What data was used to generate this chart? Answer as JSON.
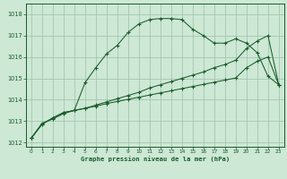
{
  "bg_color": "#cde8d5",
  "grid_color": "#9dbfab",
  "line_color": "#1a5c2a",
  "xlabel": "Graphe pression niveau de la mer (hPa)",
  "ylim": [
    1011.8,
    1018.5
  ],
  "xlim": [
    -0.5,
    23.5
  ],
  "yticks": [
    1012,
    1013,
    1014,
    1015,
    1016,
    1017,
    1018
  ],
  "xticks": [
    0,
    1,
    2,
    3,
    4,
    5,
    6,
    7,
    8,
    9,
    10,
    11,
    12,
    13,
    14,
    15,
    16,
    17,
    18,
    19,
    20,
    21,
    22,
    23
  ],
  "line_upper_x": [
    0,
    1,
    2,
    3,
    4,
    5,
    6,
    7,
    8,
    9,
    10,
    11,
    12,
    13,
    14,
    15,
    16,
    17,
    18,
    19,
    20,
    21,
    22,
    23
  ],
  "line_upper_y": [
    1012.2,
    1012.9,
    1013.1,
    1013.35,
    1013.5,
    1014.8,
    1015.5,
    1016.15,
    1016.55,
    1017.15,
    1017.55,
    1017.75,
    1017.8,
    1017.8,
    1017.75,
    1017.3,
    1017.0,
    1016.65,
    1016.65,
    1016.85,
    1016.65,
    1016.2,
    1015.1,
    1014.7
  ],
  "line_mid_x": [
    0,
    1,
    2,
    3,
    4,
    5,
    6,
    7,
    8,
    9,
    10,
    11,
    12,
    13,
    14,
    15,
    16,
    17,
    18,
    19,
    20,
    21,
    22,
    23
  ],
  "line_mid_y": [
    1012.2,
    1012.85,
    1013.15,
    1013.4,
    1013.5,
    1013.6,
    1013.75,
    1013.9,
    1014.05,
    1014.2,
    1014.35,
    1014.55,
    1014.7,
    1014.85,
    1015.0,
    1015.15,
    1015.3,
    1015.5,
    1015.65,
    1015.85,
    1016.4,
    1016.75,
    1017.0,
    1014.7
  ],
  "line_low_x": [
    0,
    1,
    2,
    3,
    4,
    5,
    6,
    7,
    8,
    9,
    10,
    11,
    12,
    13,
    14,
    15,
    16,
    17,
    18,
    19,
    20,
    21,
    22,
    23
  ],
  "line_low_y": [
    1012.2,
    1012.85,
    1013.15,
    1013.4,
    1013.5,
    1013.6,
    1013.7,
    1013.82,
    1013.92,
    1014.02,
    1014.12,
    1014.22,
    1014.32,
    1014.42,
    1014.52,
    1014.62,
    1014.72,
    1014.82,
    1014.92,
    1015.02,
    1015.5,
    1015.8,
    1016.0,
    1014.7
  ]
}
